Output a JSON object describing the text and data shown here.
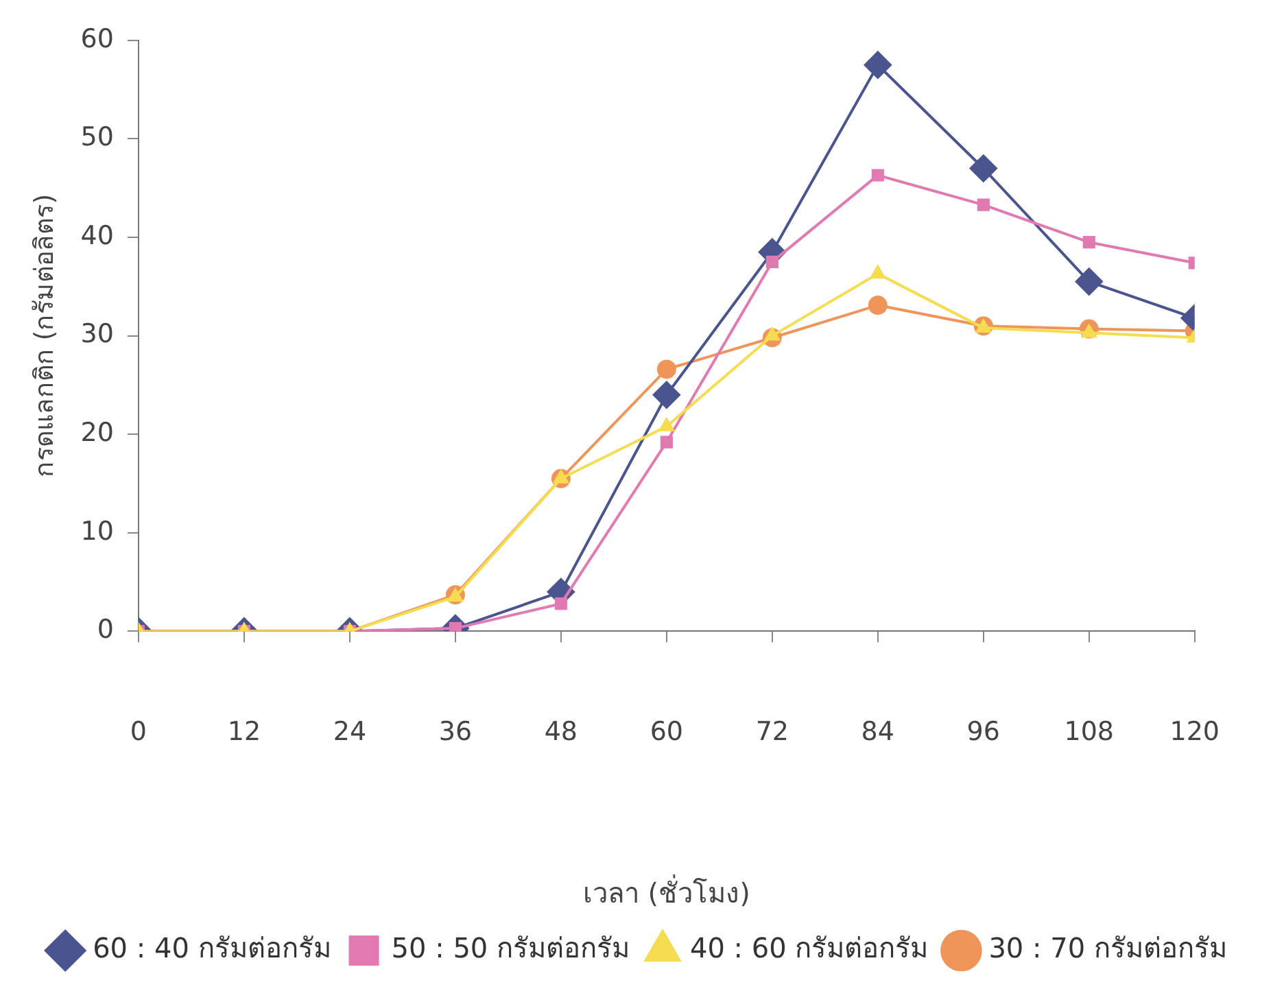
{
  "chart_data": {
    "type": "line",
    "xlabel": "เวลา (ชั่วโมง)",
    "ylabel": "กรดแลกติก (กรัมต่อลิตร)",
    "x": [
      0,
      12,
      24,
      36,
      48,
      60,
      72,
      84,
      96,
      108,
      120
    ],
    "xlim": [
      0,
      120
    ],
    "xticks": [
      0,
      12,
      24,
      36,
      48,
      60,
      72,
      84,
      96,
      108,
      120
    ],
    "ylim": [
      0,
      60
    ],
    "yticks": [
      0,
      10,
      20,
      30,
      40,
      50,
      60
    ],
    "grid": false,
    "legend": "bottom",
    "line_style": "solid",
    "series": [
      {
        "name": "60 : 40 กรัมต่อกรัม",
        "color": "#4a5590",
        "marker": "diamond",
        "values": [
          0,
          0,
          0,
          0.3,
          4,
          24,
          38.5,
          57.5,
          47,
          35.5,
          31.8
        ]
      },
      {
        "name": "50 : 50 กรัมต่อกรัม",
        "color": "#e07ab0",
        "marker": "square",
        "values": [
          0,
          0,
          0,
          0.3,
          2.8,
          19.2,
          37.5,
          46.3,
          43.3,
          39.5,
          37.4
        ]
      },
      {
        "name": "40 : 60 กรัมต่อกรัม",
        "color": "#f5dc50",
        "marker": "triangle",
        "values": [
          0,
          0,
          0,
          3.5,
          15.5,
          20.8,
          30,
          36.3,
          30.8,
          30.3,
          29.8
        ]
      },
      {
        "name": "30 : 70 กรัมต่อกรัม",
        "color": "#f0955a",
        "marker": "circle",
        "values": [
          0,
          0,
          0,
          3.7,
          15.5,
          26.6,
          29.8,
          33.1,
          31,
          30.7,
          30.5
        ]
      }
    ]
  }
}
